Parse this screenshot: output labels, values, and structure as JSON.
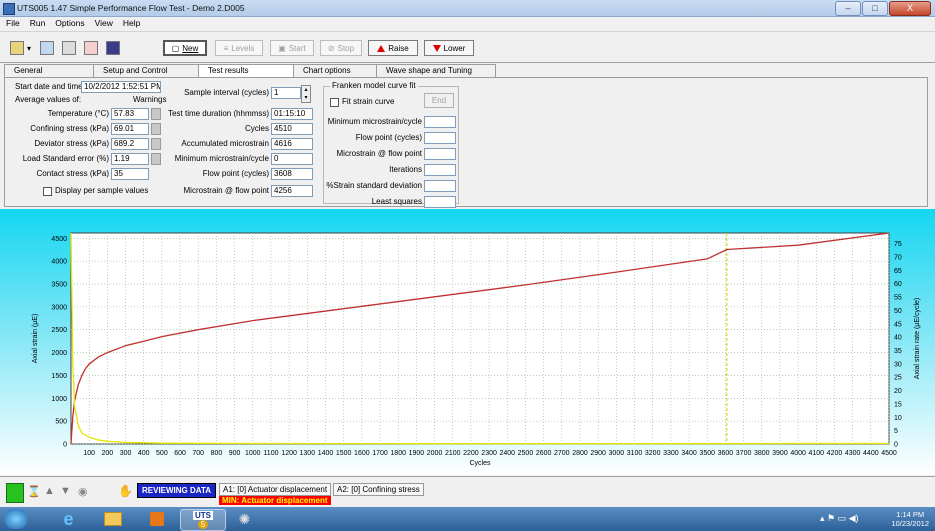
{
  "window": {
    "title": "UTS005 1.47 Simple Performance Flow Test - Demo 2.D005",
    "min": "–",
    "max": "□",
    "close": "X"
  },
  "menu": [
    "File",
    "Run",
    "Options",
    "View",
    "Help"
  ],
  "toolbar": {
    "new": "New",
    "levels": "Levels",
    "start": "Start",
    "stop": "Stop",
    "raise": "Raise",
    "lower": "Lower"
  },
  "tabs": [
    "General",
    "Setup and Control",
    "Test results",
    "Chart options",
    "Wave shape and Tuning"
  ],
  "results": {
    "start_label": "Start date and time",
    "start_value": "10/2/2012 1:52:51 PM",
    "average_label": "Average values of:",
    "warnings_label": "Warnings",
    "temperature_label": "Temperature (°C)",
    "temperature_value": "57.83",
    "confining_label": "Confining stress (kPa)",
    "confining_value": "69.01",
    "deviator_label": "Deviator stress (kPa)",
    "deviator_value": "689.2",
    "load_error_label": "Load Standard error (%)",
    "load_error_value": "1.19",
    "contact_label": "Contact stress (kPa)",
    "contact_value": "35",
    "display_per_sample": "Display per sample values",
    "sample_interval_label": "Sample interval (cycles)",
    "sample_interval_value": "1",
    "duration_label": "Test time duration (hhmmss)",
    "duration_value": "01:15:10",
    "cycles_label": "Cycles",
    "cycles_value": "4510",
    "accum_label": "Accumulated microstrain",
    "accum_value": "4616",
    "min_micro_label": "Minimum microstrain/cycle",
    "min_micro_value": "0",
    "flow_point_label": "Flow point (cycles)",
    "flow_point_value": "3608",
    "micro_flow_label": "Microstrain @ flow point",
    "micro_flow_value": "4256"
  },
  "franken": {
    "title": "Franken model curve fit",
    "fit_label": "Fit strain curve",
    "end_button": "End",
    "min_micro_label": "Minimum microstrain/cycle",
    "flow_point_label": "Flow point (cycles)",
    "micro_flow_label": "Microstrain @ flow point",
    "iterations_label": "Iterations",
    "strain_sd_label": "%Strain standard deviation",
    "least_squares_label": "Least squares"
  },
  "chart_data": {
    "type": "line",
    "xlabel": "Cycles",
    "ylabel": "Axial strain (µE)",
    "y2label": "Axial strain rate (µE/cycle)",
    "xlim": [
      0,
      4500
    ],
    "ylim": [
      0,
      4616
    ],
    "y2lim": [
      0,
      79
    ],
    "xticks": [
      100,
      200,
      300,
      400,
      500,
      600,
      700,
      800,
      900,
      1000,
      1100,
      1200,
      1300,
      1400,
      1500,
      1600,
      1700,
      1800,
      1900,
      2000,
      2100,
      2200,
      2300,
      2400,
      2500,
      2600,
      2700,
      2800,
      2900,
      3000,
      3100,
      3200,
      3300,
      3400,
      3500,
      3600,
      3700,
      3800,
      3900,
      4000,
      4100,
      4200,
      4300,
      4400,
      4500
    ],
    "yticks": [
      0,
      500,
      1000,
      1500,
      2000,
      2500,
      3000,
      3500,
      4000,
      4500
    ],
    "y2ticks": [
      0,
      5,
      10,
      15,
      20,
      25,
      30,
      35,
      40,
      45,
      50,
      55,
      60,
      65,
      70,
      75
    ],
    "grid": true,
    "flow_point_marker": 3608,
    "series": [
      {
        "axis": "left",
        "color": "#c03030",
        "x": [
          0,
          10,
          20,
          40,
          60,
          80,
          100,
          150,
          200,
          300,
          400,
          500,
          700,
          1000,
          1500,
          2000,
          2500,
          3000,
          3500,
          3608,
          4000,
          4500
        ],
        "values": [
          0,
          600,
          950,
          1300,
          1500,
          1650,
          1750,
          1900,
          2000,
          2150,
          2250,
          2350,
          2500,
          2700,
          2960,
          3220,
          3480,
          3760,
          4050,
          4256,
          4350,
          4616
        ]
      },
      {
        "axis": "right",
        "color": "#e6e600",
        "x": [
          0,
          5,
          10,
          20,
          40,
          60,
          100,
          150,
          200,
          300,
          500,
          1000,
          2000,
          3000,
          4000,
          4500
        ],
        "values": [
          79,
          55,
          30,
          14,
          7,
          4,
          2.5,
          1.5,
          1,
          0.6,
          0.3,
          0.2,
          0.1,
          0.1,
          0.2,
          0.2
        ]
      }
    ]
  },
  "status": {
    "reviewing": "REVIEWING DATA",
    "a1": "A1: [0] Actuator displacement",
    "min": "MIN: Actuator displacement",
    "a2": "A2: [0] Confining stress"
  },
  "taskbar": {
    "uts_label": "UTS",
    "uts_count": "5",
    "time": "1:14 PM",
    "date": "10/23/2012"
  }
}
